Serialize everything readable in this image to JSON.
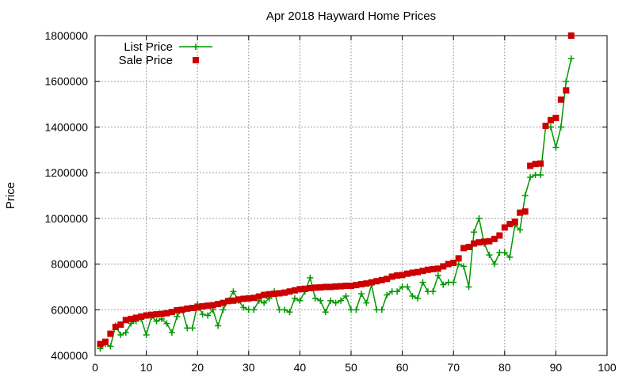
{
  "chart_data": {
    "type": "line",
    "title": "Apr 2018 Hayward Home Prices",
    "xlabel": "",
    "ylabel": "Price",
    "xlim": [
      0,
      100
    ],
    "ylim": [
      400000,
      1800000
    ],
    "xticks": [
      0,
      10,
      20,
      30,
      40,
      50,
      60,
      70,
      80,
      90,
      100
    ],
    "yticks": [
      400000,
      600000,
      800000,
      1000000,
      1200000,
      1400000,
      1600000,
      1800000
    ],
    "grid": true,
    "legend_position": "top-left",
    "series": [
      {
        "name": "List Price",
        "color": "#009900",
        "marker": "plus",
        "style": "line+points",
        "x": [
          1,
          2,
          3,
          4,
          5,
          6,
          7,
          8,
          9,
          10,
          11,
          12,
          13,
          14,
          15,
          16,
          17,
          18,
          19,
          20,
          21,
          22,
          23,
          24,
          25,
          26,
          27,
          28,
          29,
          30,
          31,
          32,
          33,
          34,
          35,
          36,
          37,
          38,
          39,
          40,
          41,
          42,
          43,
          44,
          45,
          46,
          47,
          48,
          49,
          50,
          51,
          52,
          53,
          54,
          55,
          56,
          57,
          58,
          59,
          60,
          61,
          62,
          63,
          64,
          65,
          66,
          67,
          68,
          69,
          70,
          71,
          72,
          73,
          74,
          75,
          76,
          77,
          78,
          79,
          80,
          81,
          82,
          83,
          84,
          85,
          86,
          87,
          88,
          89,
          90,
          91,
          92,
          93
        ],
        "values": [
          430000,
          450000,
          440000,
          530000,
          490000,
          500000,
          540000,
          550000,
          560000,
          490000,
          570000,
          550000,
          560000,
          540000,
          500000,
          570000,
          600000,
          520000,
          520000,
          625000,
          580000,
          575000,
          600000,
          530000,
          600000,
          640000,
          680000,
          640000,
          610000,
          600000,
          600000,
          640000,
          630000,
          650000,
          680000,
          600000,
          600000,
          590000,
          650000,
          640000,
          680000,
          740000,
          650000,
          640000,
          590000,
          640000,
          630000,
          640000,
          660000,
          600000,
          600000,
          670000,
          630000,
          710000,
          600000,
          600000,
          665000,
          680000,
          680000,
          700000,
          700000,
          660000,
          650000,
          720000,
          680000,
          680000,
          750000,
          710000,
          720000,
          720000,
          800000,
          790000,
          700000,
          940000,
          1000000,
          890000,
          840000,
          800000,
          850000,
          850000,
          830000,
          970000,
          950000,
          1100000,
          1180000,
          1190000,
          1190000,
          1400000,
          1400000,
          1310000,
          1400000,
          1600000,
          1700000
        ]
      },
      {
        "name": "Sale Price",
        "color": "#cc0000",
        "marker": "square",
        "style": "points",
        "x": [
          1,
          2,
          3,
          4,
          5,
          6,
          7,
          8,
          9,
          10,
          11,
          12,
          13,
          14,
          15,
          16,
          17,
          18,
          19,
          20,
          21,
          22,
          23,
          24,
          25,
          26,
          27,
          28,
          29,
          30,
          31,
          32,
          33,
          34,
          35,
          36,
          37,
          38,
          39,
          40,
          41,
          42,
          43,
          44,
          45,
          46,
          47,
          48,
          49,
          50,
          51,
          52,
          53,
          54,
          55,
          56,
          57,
          58,
          59,
          60,
          61,
          62,
          63,
          64,
          65,
          66,
          67,
          68,
          69,
          70,
          71,
          72,
          73,
          74,
          75,
          76,
          77,
          78,
          79,
          80,
          81,
          82,
          83,
          84,
          85,
          86,
          87,
          88,
          89,
          90,
          91,
          92,
          93
        ],
        "values": [
          450000,
          460000,
          495000,
          525000,
          535000,
          555000,
          560000,
          565000,
          570000,
          575000,
          578000,
          580000,
          582000,
          585000,
          590000,
          598000,
          600000,
          605000,
          608000,
          610000,
          615000,
          618000,
          620000,
          625000,
          630000,
          638000,
          640000,
          645000,
          648000,
          650000,
          652000,
          658000,
          665000,
          668000,
          670000,
          672000,
          675000,
          680000,
          685000,
          690000,
          692000,
          695000,
          697000,
          698000,
          700000,
          700000,
          702000,
          703000,
          705000,
          705000,
          708000,
          712000,
          715000,
          720000,
          725000,
          730000,
          735000,
          745000,
          750000,
          752000,
          758000,
          762000,
          765000,
          770000,
          775000,
          778000,
          780000,
          790000,
          800000,
          805000,
          825000,
          870000,
          875000,
          890000,
          895000,
          898000,
          900000,
          910000,
          925000,
          960000,
          975000,
          985000,
          1025000,
          1030000,
          1230000,
          1238000,
          1240000,
          1405000,
          1430000,
          1440000,
          1520000,
          1560000,
          1800000
        ]
      }
    ]
  }
}
